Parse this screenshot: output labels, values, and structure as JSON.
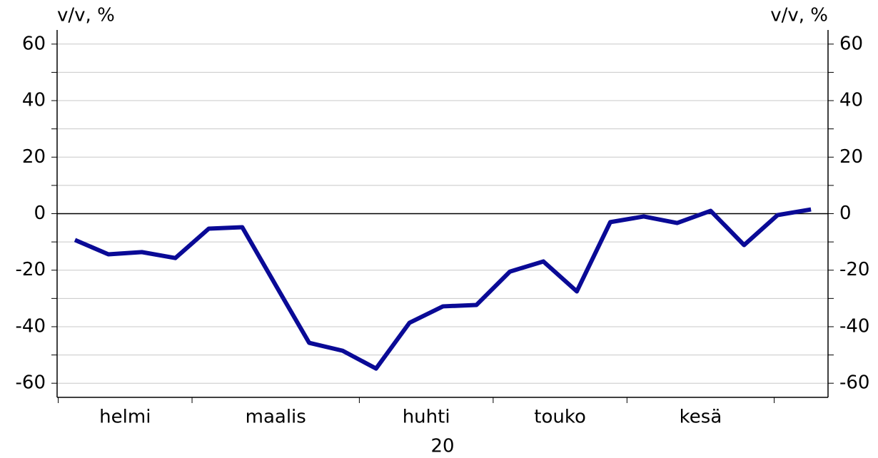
{
  "chart_data": {
    "type": "line",
    "y_label_left": "v/v, %",
    "y_label_right": "v/v, %",
    "months": [
      "helmi",
      "maalis",
      "huhti",
      "touko",
      "kesä"
    ],
    "year": "20",
    "series": [
      {
        "name": "v/v",
        "color": "#0a0a96",
        "values": [
          -9.3,
          -14.4,
          -13.6,
          -15.7,
          -5.3,
          -4.8,
          -25.3,
          -45.7,
          -48.5,
          -54.8,
          -38.6,
          -32.8,
          -32.3,
          -20.5,
          -16.9,
          -27.5,
          -3.0,
          -1.0,
          -3.3,
          1.0,
          -11.1,
          -0.5,
          1.5
        ]
      }
    ],
    "ylim": [
      -65,
      65
    ],
    "yticks": [
      -60,
      -40,
      -20,
      0,
      20,
      40,
      60
    ],
    "minor_yticks": [
      -50,
      -30,
      -10,
      10,
      30,
      50
    ],
    "grid": true
  }
}
